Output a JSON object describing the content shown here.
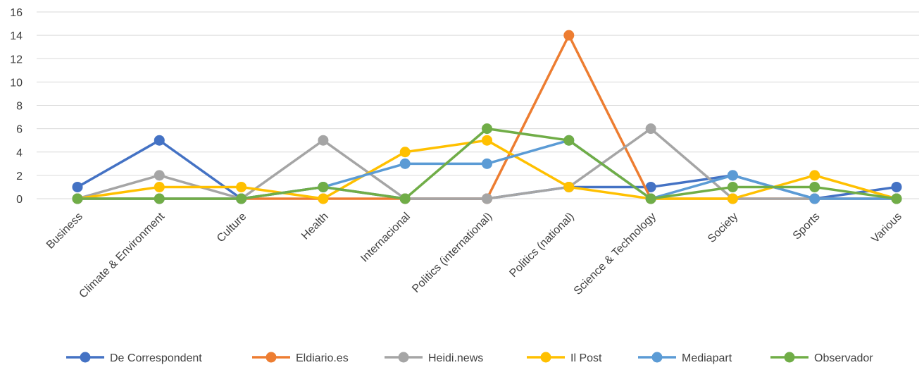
{
  "chart_data": {
    "type": "line",
    "title": "",
    "xlabel": "",
    "ylabel": "",
    "ylim": [
      0,
      16
    ],
    "yticks": [
      "0",
      "2",
      "4",
      "6",
      "8",
      "10",
      "12",
      "14",
      "16"
    ],
    "grid": true,
    "legend_position": "bottom",
    "categories": [
      "Business",
      "Climate & Environment",
      "Culture",
      "Health",
      "Internacional",
      "Politics (international)",
      "Politics (national)",
      "Science & Technology",
      "Society",
      "Sports",
      "Various"
    ],
    "series": [
      {
        "name": "De Correspondent",
        "color": "#4472c4",
        "values": [
          1,
          5,
          0,
          1,
          0,
          0,
          1,
          1,
          2,
          0,
          1
        ]
      },
      {
        "name": "Eldiario.es",
        "color": "#ed7d31",
        "values": [
          0,
          0,
          0,
          0,
          0,
          0,
          14,
          0,
          0,
          0,
          0
        ]
      },
      {
        "name": "Heidi.news",
        "color": "#a5a5a5",
        "values": [
          0,
          2,
          0,
          5,
          0,
          0,
          1,
          6,
          0,
          0,
          0
        ]
      },
      {
        "name": "Il Post",
        "color": "#ffc000",
        "values": [
          0,
          1,
          1,
          0,
          4,
          5,
          1,
          0,
          0,
          2,
          0
        ]
      },
      {
        "name": "Mediapart",
        "color": "#5b9bd5",
        "values": [
          0,
          0,
          0,
          1,
          3,
          3,
          5,
          0,
          2,
          0,
          0
        ]
      },
      {
        "name": "Observador",
        "color": "#70ad47",
        "values": [
          0,
          0,
          0,
          1,
          0,
          6,
          5,
          0,
          1,
          1,
          0
        ]
      }
    ]
  }
}
